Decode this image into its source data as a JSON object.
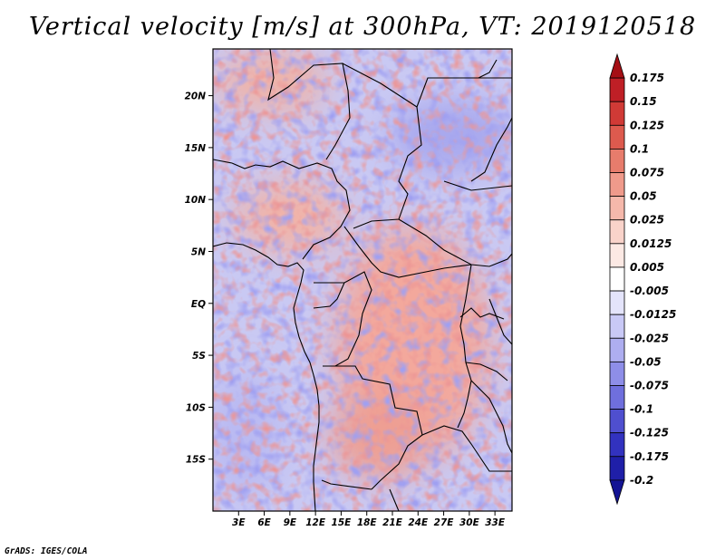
{
  "title": "Vertical velocity [m/s] at 300hPa, VT: 2019120518",
  "credit": "GrADS: IGES/COLA",
  "map": {
    "lat_range": [
      -20,
      24.5
    ],
    "lon_range": [
      0,
      35
    ],
    "lat_labels": [
      "20N",
      "15N",
      "10N",
      "5N",
      "EQ",
      "5S",
      "10S",
      "15S"
    ],
    "lat_values": [
      20,
      15,
      10,
      5,
      0,
      -5,
      -10,
      -15
    ],
    "lon_labels": [
      "3E",
      "6E",
      "9E",
      "12E",
      "15E",
      "18E",
      "21E",
      "24E",
      "27E",
      "30E",
      "33E"
    ],
    "lon_values": [
      3,
      6,
      9,
      12,
      15,
      18,
      21,
      24,
      27,
      30,
      33
    ]
  },
  "colorbar": {
    "levels": [
      "0.175",
      "0.15",
      "0.125",
      "0.1",
      "0.075",
      "0.05",
      "0.025",
      "0.0125",
      "0.005",
      "-0.005",
      "-0.0125",
      "-0.025",
      "-0.05",
      "-0.075",
      "-0.1",
      "-0.125",
      "-0.175",
      "-0.2"
    ],
    "colors": [
      "#a50f15",
      "#bf1f26",
      "#d03a36",
      "#dd5a4e",
      "#e77c6c",
      "#ef9a8b",
      "#f5b8ab",
      "#f9d3ca",
      "#fce9e4",
      "#ffffff",
      "#e4e4fb",
      "#c9c9f6",
      "#aeaef0",
      "#8e8ee8",
      "#6f6fdd",
      "#4f4fcf",
      "#3232bf",
      "#1f1fa8",
      "#141494"
    ]
  }
}
